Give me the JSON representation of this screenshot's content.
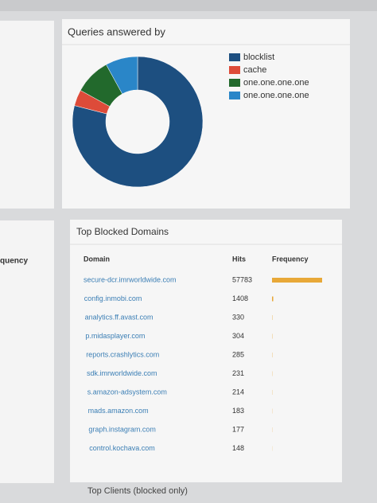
{
  "left_panel": {
    "header": "quency"
  },
  "chart_data": {
    "type": "pie",
    "donut": true,
    "title": "Queries answered by",
    "categories": [
      "blocklist",
      "cache",
      "one.one.one.one",
      "one.one.one.one"
    ],
    "values": [
      79,
      4,
      9,
      8
    ],
    "colors": [
      "#1d4f80",
      "#dd4b39",
      "#22692c",
      "#2a86c8"
    ]
  },
  "table": {
    "title": "Top Blocked Domains",
    "columns": [
      "Domain",
      "Hits",
      "Frequency"
    ],
    "rows": [
      [
        "secure-dcr.imrworldwide.com",
        57783
      ],
      [
        "config.inmobi.com",
        1408
      ],
      [
        "analytics.ff.avast.com",
        330
      ],
      [
        "p.midasplayer.com",
        304
      ],
      [
        "reports.crashlytics.com",
        285
      ],
      [
        "sdk.imrworldwide.com",
        231
      ],
      [
        "s.amazon-adsystem.com",
        214
      ],
      [
        "mads.amazon.com",
        183
      ],
      [
        "graph.instagram.com",
        177
      ],
      [
        "control.kochava.com",
        148
      ]
    ],
    "bar_color": "#e8a838"
  },
  "footer": {
    "title": "Top Clients (blocked only)"
  }
}
